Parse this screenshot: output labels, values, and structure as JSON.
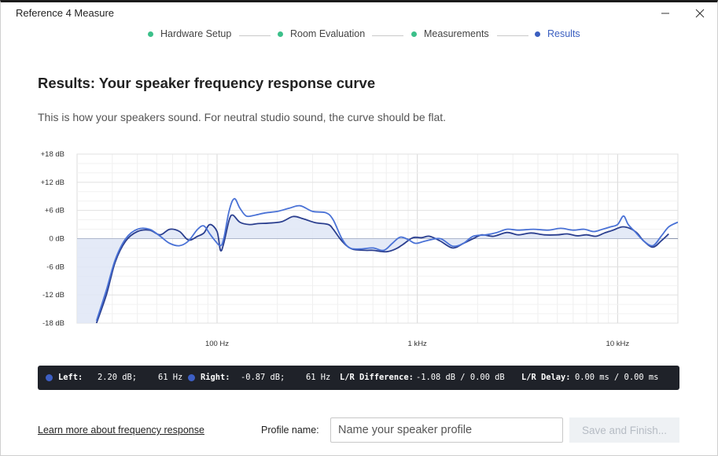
{
  "window": {
    "title": "Reference 4 Measure",
    "minimize_icon": "minimize-icon",
    "close_icon": "close-icon"
  },
  "stepper": {
    "steps": [
      {
        "label": "Hardware Setup",
        "state": "done"
      },
      {
        "label": "Room Evaluation",
        "state": "done"
      },
      {
        "label": "Measurements",
        "state": "done"
      },
      {
        "label": "Results",
        "state": "active"
      }
    ]
  },
  "main": {
    "heading": "Results: Your speaker frequency response curve",
    "subtext": "This is how your speakers sound. For neutral studio sound, the curve should be flat."
  },
  "colors": {
    "accent": "#3b5fc0",
    "done": "#3cc08a",
    "curve_left": "#2b3f8f",
    "curve_right": "#4a72d6",
    "fill": "#dfe6f6"
  },
  "chart_data": {
    "type": "line",
    "x_scale": "log",
    "xlim": [
      20,
      20000
    ],
    "ylim": [
      -18,
      18
    ],
    "y_ticks": [
      "+18 dB",
      "+12 dB",
      "+6 dB",
      "0 dB",
      "-6 dB",
      "-12 dB",
      "-18 dB"
    ],
    "y_tick_values": [
      18,
      12,
      6,
      0,
      -6,
      -12,
      -18
    ],
    "x_ticks": [
      "100 Hz",
      "1 kHz",
      "10 kHz"
    ],
    "x_tick_values": [
      100,
      1000,
      10000
    ],
    "grid": true,
    "series": [
      {
        "color": "#2b3f8f",
        "points": [
          [
            25,
            -18
          ],
          [
            28,
            -12
          ],
          [
            31,
            -5
          ],
          [
            35,
            -0.5
          ],
          [
            40,
            1.5
          ],
          [
            46,
            1.8
          ],
          [
            52,
            0.8
          ],
          [
            58,
            2
          ],
          [
            65,
            1.5
          ],
          [
            72,
            -0.3
          ],
          [
            80,
            0.5
          ],
          [
            86,
            1.2
          ],
          [
            92,
            3
          ],
          [
            100,
            1.5
          ],
          [
            104,
            -2.5
          ],
          [
            108,
            -1
          ],
          [
            115,
            4
          ],
          [
            120,
            5
          ],
          [
            130,
            3.5
          ],
          [
            145,
            3
          ],
          [
            160,
            3.2
          ],
          [
            180,
            3.3
          ],
          [
            210,
            3.6
          ],
          [
            240,
            4.7
          ],
          [
            270,
            4.2
          ],
          [
            310,
            3.4
          ],
          [
            360,
            3
          ],
          [
            380,
            2
          ],
          [
            420,
            -0.5
          ],
          [
            470,
            -2.2
          ],
          [
            550,
            -2.5
          ],
          [
            600,
            -2.5
          ],
          [
            700,
            -2.8
          ],
          [
            780,
            -2.2
          ],
          [
            850,
            -1.2
          ],
          [
            950,
            0.2
          ],
          [
            1050,
            0.2
          ],
          [
            1150,
            0.5
          ],
          [
            1300,
            -0.5
          ],
          [
            1500,
            -2
          ],
          [
            1700,
            -1
          ],
          [
            1900,
            0
          ],
          [
            2100,
            0.8
          ],
          [
            2400,
            0.5
          ],
          [
            2800,
            1.3
          ],
          [
            3200,
            0.8
          ],
          [
            3700,
            1.2
          ],
          [
            4300,
            0.8
          ],
          [
            5000,
            0.8
          ],
          [
            5600,
            1
          ],
          [
            6300,
            0.6
          ],
          [
            7000,
            0.8
          ],
          [
            7800,
            0.5
          ],
          [
            8600,
            1.2
          ],
          [
            9500,
            1.8
          ],
          [
            10500,
            2.5
          ],
          [
            11500,
            2.2
          ],
          [
            12500,
            1.2
          ],
          [
            13500,
            -0.5
          ],
          [
            15000,
            -1.8
          ],
          [
            16500,
            -0.5
          ],
          [
            18000,
            1
          ]
        ]
      },
      {
        "color": "#4a72d6",
        "points": [
          [
            25,
            -17.5
          ],
          [
            28,
            -11
          ],
          [
            31,
            -4.5
          ],
          [
            35,
            0
          ],
          [
            40,
            2
          ],
          [
            46,
            2
          ],
          [
            52,
            0.5
          ],
          [
            58,
            -1
          ],
          [
            65,
            -1.5
          ],
          [
            72,
            -0.5
          ],
          [
            80,
            2
          ],
          [
            86,
            2.7
          ],
          [
            92,
            1
          ],
          [
            98,
            -0.5
          ],
          [
            104,
            -1.5
          ],
          [
            108,
            0
          ],
          [
            115,
            6
          ],
          [
            122,
            8.5
          ],
          [
            130,
            6.5
          ],
          [
            140,
            4.8
          ],
          [
            155,
            5
          ],
          [
            175,
            5.5
          ],
          [
            200,
            5.8
          ],
          [
            230,
            6.5
          ],
          [
            260,
            7
          ],
          [
            300,
            5.8
          ],
          [
            350,
            5.5
          ],
          [
            380,
            4
          ],
          [
            420,
            0
          ],
          [
            460,
            -2
          ],
          [
            520,
            -2.2
          ],
          [
            600,
            -2
          ],
          [
            680,
            -2.5
          ],
          [
            750,
            -1
          ],
          [
            820,
            0.3
          ],
          [
            900,
            -0.2
          ],
          [
            980,
            -1
          ],
          [
            1100,
            -0.5
          ],
          [
            1300,
            0
          ],
          [
            1500,
            -1.6
          ],
          [
            1700,
            -1
          ],
          [
            1900,
            0.5
          ],
          [
            2200,
            0.8
          ],
          [
            2500,
            1.3
          ],
          [
            2800,
            2
          ],
          [
            3200,
            1.8
          ],
          [
            3800,
            2
          ],
          [
            4500,
            1.8
          ],
          [
            5200,
            2.2
          ],
          [
            6000,
            1.8
          ],
          [
            6800,
            2
          ],
          [
            7600,
            1.5
          ],
          [
            8400,
            2
          ],
          [
            9200,
            2.5
          ],
          [
            10000,
            3
          ],
          [
            10700,
            4.8
          ],
          [
            11300,
            3
          ],
          [
            12200,
            1.5
          ],
          [
            13500,
            -0.5
          ],
          [
            15000,
            -1.5
          ],
          [
            16500,
            0.5
          ],
          [
            18000,
            2.5
          ],
          [
            20000,
            3.5
          ]
        ]
      }
    ]
  },
  "stats": {
    "left_label": "Left:",
    "left_db": "2.20 dB;",
    "left_hz": "61 Hz",
    "right_label": "Right:",
    "right_db": "-0.87 dB;",
    "right_hz": "61 Hz",
    "diff_label": "L/R Difference:",
    "diff_value": "-1.08 dB / 0.00 dB",
    "delay_label": "L/R Delay:",
    "delay_value": "0.00 ms / 0.00 ms"
  },
  "footer": {
    "learn_link": "Learn more about frequency response",
    "profile_label": "Profile name:",
    "profile_placeholder": "Name your speaker profile",
    "profile_value": "",
    "save_button": "Save and Finish..."
  }
}
